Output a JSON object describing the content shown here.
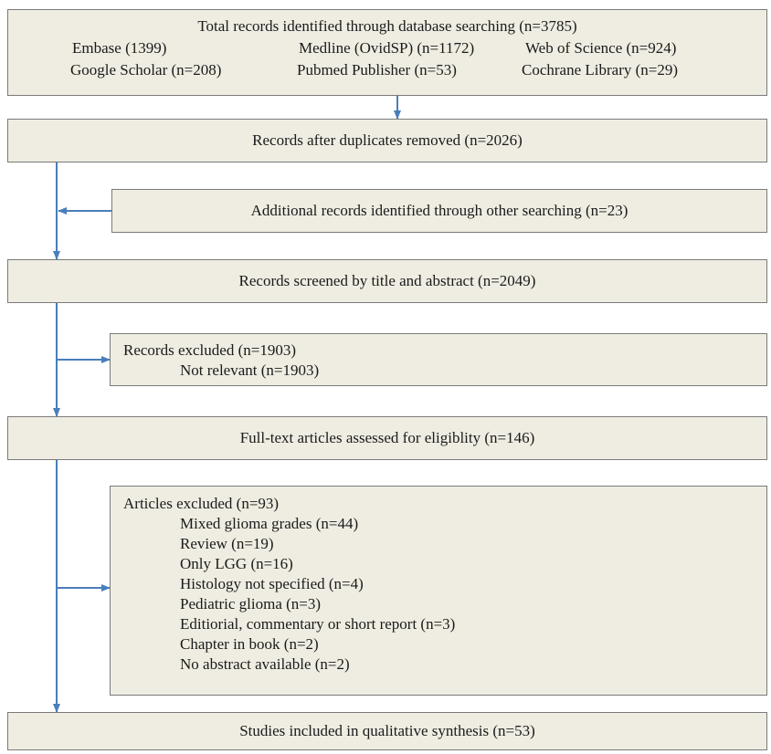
{
  "identified": {
    "title": "Total records identified through database searching (n=3785)",
    "sources_row1": [
      "Embase (1399)",
      "Medline (OvidSP) (n=1172)",
      "Web of Science (n=924)"
    ],
    "sources_row2": [
      "Google Scholar (n=208)",
      "Pubmed Publisher (n=53)",
      "Cochrane Library (n=29)"
    ]
  },
  "after_duplicates": "Records after duplicates removed (n=2026)",
  "additional": "Additional records identified through other searching (n=23)",
  "screened": "Records screened by title and abstract (n=2049)",
  "excluded_records": {
    "title": "Records excluded (n=1903)",
    "items": [
      "Not relevant (n=1903)"
    ]
  },
  "fulltext": "Full-text articles assessed for eligiblity (n=146)",
  "excluded_articles": {
    "title": "Articles excluded (n=93)",
    "items": [
      "Mixed glioma grades (n=44)",
      "Review (n=19)",
      "Only LGG (n=16)",
      "Histology not specified (n=4)",
      "Pediatric glioma (n=3)",
      "Editiorial, commentary or short report (n=3)",
      "Chapter in book (n=2)",
      "No abstract available (n=2)"
    ]
  },
  "included": "Studies included in qualitative synthesis (n=53)",
  "colors": {
    "box_fill": "#efede2",
    "box_border": "#7a7a7a",
    "arrow": "#4a7ebb"
  }
}
